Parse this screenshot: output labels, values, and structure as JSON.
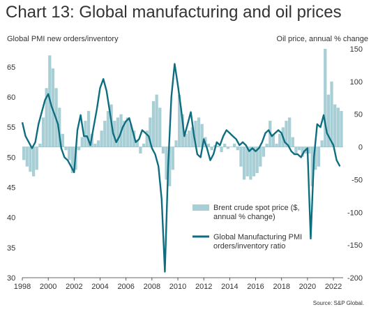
{
  "title": "Chart 13: Global manufacturing and oil prices",
  "left_axis_caption": "Global PMI new orders/inventory",
  "right_axis_caption": "Oil price, annual % change",
  "source": "Source: S&P Global.",
  "chart_data": {
    "type": "bar+line",
    "left_axis": {
      "min": 30,
      "max": 68,
      "ticks": [
        30,
        35,
        40,
        45,
        50,
        55,
        60,
        65
      ]
    },
    "right_axis": {
      "min": -200,
      "max": 150,
      "ticks": [
        -200,
        -150,
        -100,
        -50,
        0,
        50,
        100,
        150
      ]
    },
    "x_axis": {
      "ticks": [
        "1998",
        "2000",
        "2002",
        "2004",
        "2006",
        "2008",
        "2010",
        "2012",
        "2014",
        "2016",
        "2018",
        "2020",
        "2022"
      ]
    },
    "legend": [
      {
        "label_lines": [
          "Brent crude spot price ($,",
          "annual % change)"
        ],
        "color": "#a9cfd6",
        "kind": "bar"
      },
      {
        "label_lines": [
          "Global Manufacturing PMI",
          "orders/inventory ratio"
        ],
        "color": "#0e6e80",
        "kind": "line"
      }
    ],
    "series": [
      {
        "name": "Brent crude spot price ($, annual % change)",
        "axis": "right",
        "points": [
          [
            1998.0,
            -20
          ],
          [
            1998.25,
            -30
          ],
          [
            1998.5,
            -38
          ],
          [
            1998.75,
            -45
          ],
          [
            1999.0,
            -35
          ],
          [
            1999.25,
            5
          ],
          [
            1999.5,
            45
          ],
          [
            1999.75,
            90
          ],
          [
            2000.0,
            140
          ],
          [
            2000.25,
            120
          ],
          [
            2000.5,
            90
          ],
          [
            2000.75,
            60
          ],
          [
            2001.0,
            20
          ],
          [
            2001.25,
            -5
          ],
          [
            2001.5,
            -20
          ],
          [
            2001.75,
            -40
          ],
          [
            2002.0,
            -35
          ],
          [
            2002.25,
            -5
          ],
          [
            2002.5,
            15
          ],
          [
            2002.75,
            40
          ],
          [
            2003.0,
            55
          ],
          [
            2003.25,
            20
          ],
          [
            2003.5,
            5
          ],
          [
            2003.75,
            10
          ],
          [
            2004.0,
            25
          ],
          [
            2004.25,
            40
          ],
          [
            2004.5,
            55
          ],
          [
            2004.75,
            65
          ],
          [
            2005.0,
            40
          ],
          [
            2005.25,
            45
          ],
          [
            2005.5,
            50
          ],
          [
            2005.75,
            40
          ],
          [
            2006.0,
            45
          ],
          [
            2006.25,
            35
          ],
          [
            2006.5,
            25
          ],
          [
            2006.75,
            10
          ],
          [
            2007.0,
            -10
          ],
          [
            2007.25,
            5
          ],
          [
            2007.5,
            25
          ],
          [
            2007.75,
            45
          ],
          [
            2008.0,
            70
          ],
          [
            2008.25,
            80
          ],
          [
            2008.5,
            60
          ],
          [
            2008.75,
            -10
          ],
          [
            2009.0,
            -50
          ],
          [
            2009.25,
            -60
          ],
          [
            2009.5,
            -35
          ],
          [
            2009.75,
            10
          ],
          [
            2010.0,
            80
          ],
          [
            2010.25,
            50
          ],
          [
            2010.5,
            20
          ],
          [
            2010.75,
            25
          ],
          [
            2011.0,
            30
          ],
          [
            2011.25,
            40
          ],
          [
            2011.5,
            45
          ],
          [
            2011.75,
            35
          ],
          [
            2012.0,
            15
          ],
          [
            2012.25,
            5
          ],
          [
            2012.5,
            -5
          ],
          [
            2012.75,
            3
          ],
          [
            2013.0,
            2
          ],
          [
            2013.25,
            -8
          ],
          [
            2013.5,
            5
          ],
          [
            2013.75,
            -3
          ],
          [
            2014.0,
            0
          ],
          [
            2014.25,
            5
          ],
          [
            2014.5,
            -5
          ],
          [
            2014.75,
            -30
          ],
          [
            2015.0,
            -50
          ],
          [
            2015.25,
            -45
          ],
          [
            2015.5,
            -50
          ],
          [
            2015.75,
            -45
          ],
          [
            2016.0,
            -40
          ],
          [
            2016.25,
            -30
          ],
          [
            2016.5,
            -15
          ],
          [
            2016.75,
            5
          ],
          [
            2017.0,
            40
          ],
          [
            2017.25,
            20
          ],
          [
            2017.5,
            5
          ],
          [
            2017.75,
            20
          ],
          [
            2018.0,
            30
          ],
          [
            2018.25,
            40
          ],
          [
            2018.5,
            45
          ],
          [
            2018.75,
            15
          ],
          [
            2019.0,
            -10
          ],
          [
            2019.25,
            -5
          ],
          [
            2019.5,
            -15
          ],
          [
            2019.75,
            -10
          ],
          [
            2020.0,
            -10
          ],
          [
            2020.25,
            -60
          ],
          [
            2020.5,
            -35
          ],
          [
            2020.75,
            -30
          ],
          [
            2021.0,
            10
          ],
          [
            2021.25,
            150
          ],
          [
            2021.5,
            80
          ],
          [
            2021.75,
            100
          ],
          [
            2022.0,
            65
          ],
          [
            2022.25,
            60
          ],
          [
            2022.5,
            55
          ]
        ]
      },
      {
        "name": "Global Manufacturing PMI orders/inventory ratio",
        "axis": "left",
        "points": [
          [
            1998.0,
            55.8
          ],
          [
            1998.25,
            53.5
          ],
          [
            1998.5,
            52.5
          ],
          [
            1998.75,
            51.5
          ],
          [
            1999.0,
            52.5
          ],
          [
            1999.25,
            55.5
          ],
          [
            1999.5,
            57.5
          ],
          [
            1999.75,
            59.5
          ],
          [
            2000.0,
            60.5
          ],
          [
            2000.25,
            58.5
          ],
          [
            2000.5,
            57.0
          ],
          [
            2000.75,
            55.5
          ],
          [
            2001.0,
            51.5
          ],
          [
            2001.25,
            50.0
          ],
          [
            2001.5,
            49.5
          ],
          [
            2001.75,
            48.5
          ],
          [
            2002.0,
            47.5
          ],
          [
            2002.25,
            54.5
          ],
          [
            2002.5,
            57.0
          ],
          [
            2002.75,
            53.5
          ],
          [
            2003.0,
            53.5
          ],
          [
            2003.25,
            52.0
          ],
          [
            2003.5,
            55.0
          ],
          [
            2003.75,
            58.0
          ],
          [
            2004.0,
            61.5
          ],
          [
            2004.25,
            63.0
          ],
          [
            2004.5,
            61.0
          ],
          [
            2004.75,
            57.5
          ],
          [
            2005.0,
            54.0
          ],
          [
            2005.25,
            52.5
          ],
          [
            2005.5,
            53.5
          ],
          [
            2005.75,
            55.0
          ],
          [
            2006.0,
            56.0
          ],
          [
            2006.25,
            56.5
          ],
          [
            2006.5,
            54.5
          ],
          [
            2006.75,
            52.5
          ],
          [
            2007.0,
            53.0
          ],
          [
            2007.25,
            54.5
          ],
          [
            2007.5,
            54.0
          ],
          [
            2007.75,
            53.5
          ],
          [
            2008.0,
            51.5
          ],
          [
            2008.25,
            50.5
          ],
          [
            2008.5,
            48.5
          ],
          [
            2008.75,
            43.0
          ],
          [
            2009.0,
            31.0
          ],
          [
            2009.25,
            48.5
          ],
          [
            2009.5,
            60.0
          ],
          [
            2009.75,
            65.5
          ],
          [
            2010.0,
            62.0
          ],
          [
            2010.25,
            58.0
          ],
          [
            2010.5,
            53.5
          ],
          [
            2010.75,
            55.5
          ],
          [
            2011.0,
            57.5
          ],
          [
            2011.25,
            53.5
          ],
          [
            2011.5,
            50.5
          ],
          [
            2011.75,
            50.0
          ],
          [
            2012.0,
            53.0
          ],
          [
            2012.25,
            51.5
          ],
          [
            2012.5,
            49.5
          ],
          [
            2012.75,
            50.5
          ],
          [
            2013.0,
            52.5
          ],
          [
            2013.25,
            52.0
          ],
          [
            2013.5,
            53.5
          ],
          [
            2013.75,
            54.5
          ],
          [
            2014.0,
            54.0
          ],
          [
            2014.25,
            53.5
          ],
          [
            2014.5,
            53.0
          ],
          [
            2014.75,
            52.0
          ],
          [
            2015.0,
            52.5
          ],
          [
            2015.25,
            52.0
          ],
          [
            2015.5,
            51.0
          ],
          [
            2015.75,
            51.5
          ],
          [
            2016.0,
            51.0
          ],
          [
            2016.25,
            51.5
          ],
          [
            2016.5,
            52.5
          ],
          [
            2016.75,
            54.0
          ],
          [
            2017.0,
            54.5
          ],
          [
            2017.25,
            53.5
          ],
          [
            2017.5,
            54.0
          ],
          [
            2017.75,
            54.5
          ],
          [
            2018.0,
            54.0
          ],
          [
            2018.25,
            52.5
          ],
          [
            2018.5,
            52.0
          ],
          [
            2018.75,
            51.0
          ],
          [
            2019.0,
            50.5
          ],
          [
            2019.25,
            50.5
          ],
          [
            2019.5,
            50.0
          ],
          [
            2019.75,
            51.0
          ],
          [
            2020.0,
            51.5
          ],
          [
            2020.25,
            36.5
          ],
          [
            2020.5,
            50.0
          ],
          [
            2020.75,
            55.5
          ],
          [
            2021.0,
            55.0
          ],
          [
            2021.25,
            57.0
          ],
          [
            2021.5,
            54.0
          ],
          [
            2021.75,
            53.0
          ],
          [
            2022.0,
            52.0
          ],
          [
            2022.25,
            49.5
          ],
          [
            2022.5,
            48.5
          ]
        ]
      }
    ]
  }
}
